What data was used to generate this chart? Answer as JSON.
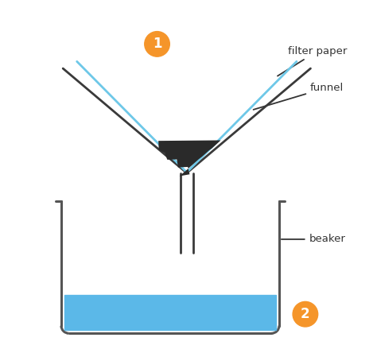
{
  "background_color": "#ffffff",
  "funnel_color": "#3a3a3a",
  "filter_paper_color": "#6ec8e8",
  "liquid_color": "#5bb8e8",
  "sediment_color": "#2a2a2a",
  "beaker_color": "#555555",
  "label_color": "#333333",
  "badge_color": "#f5952a",
  "badge_text_color": "#ffffff",
  "label1": "filter paper",
  "label2": "funnel",
  "label3": "beaker",
  "badge1": "1",
  "badge2": "2",
  "figsize": [
    4.74,
    4.44
  ],
  "dpi": 100
}
